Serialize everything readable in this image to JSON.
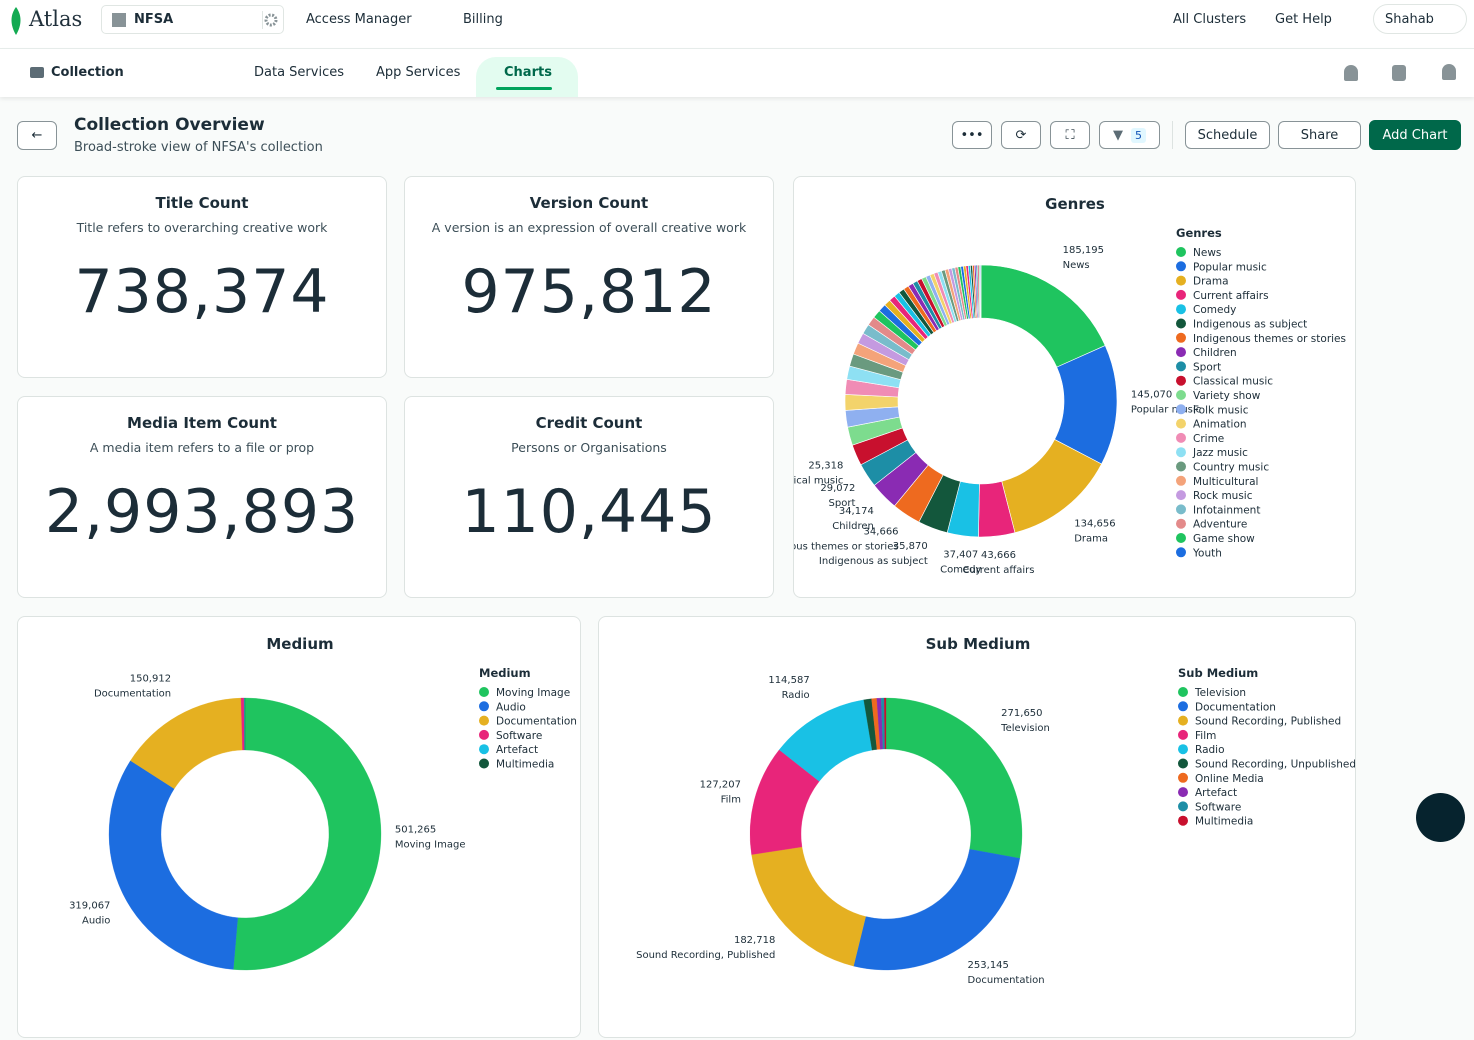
{
  "topbar": {
    "logo": "Atlas",
    "org": "NFSA",
    "nav": [
      "Access Manager",
      "Billing"
    ],
    "right": [
      "All Clusters",
      "Get Help",
      "Shahab"
    ]
  },
  "subbar": {
    "project": "Collection",
    "tabs": [
      "Data Services",
      "App Services",
      "Charts"
    ]
  },
  "header": {
    "title": "Collection Overview",
    "subtitle": "Broad-stroke view of NFSA's collection",
    "filter_count": 5,
    "buttons": [
      "Schedule",
      "Share",
      "Add Chart"
    ]
  },
  "kpis": [
    {
      "title": "Title Count",
      "subtitle": "Title refers to overarching creative work",
      "value": "738,374"
    },
    {
      "title": "Version Count",
      "subtitle": "A version is an expression of overall creative work",
      "value": "975,812"
    },
    {
      "title": "Media Item Count",
      "subtitle": "A media item refers to a file or prop",
      "value": "2,993,893"
    },
    {
      "title": "Credit Count",
      "subtitle": "Persons or Organisations",
      "value": "110,445"
    }
  ],
  "chart_data": [
    {
      "type": "pie",
      "title": "Genres",
      "legend_title": "Genres",
      "categories": [
        "News",
        "Popular music",
        "Drama",
        "Current affairs",
        "Comedy",
        "Indigenous as subject",
        "Indigenous themes or stories",
        "Children",
        "Sport",
        "Classical music",
        "Variety show",
        "Folk music",
        "Animation",
        "Crime",
        "Jazz music",
        "Country music",
        "Multicultural",
        "Rock music",
        "Infotainment",
        "Adventure",
        "Game show",
        "Youth",
        null,
        null,
        null,
        null,
        null,
        null,
        null,
        null,
        null,
        null,
        null,
        null,
        null,
        null,
        null,
        null,
        null,
        null,
        null,
        null,
        null,
        null,
        null,
        null,
        null,
        null,
        null,
        null,
        null,
        null
      ],
      "values": [
        185195,
        145070,
        134656,
        43666,
        37407,
        35870,
        34666,
        34174,
        29072,
        25318,
        22000,
        20000,
        19000,
        18000,
        16000,
        15000,
        14000,
        13000,
        12000,
        11000,
        10000,
        9500,
        8000,
        7500,
        7000,
        6800,
        6500,
        6200,
        6000,
        5800,
        5500,
        5200,
        5000,
        4800,
        4600,
        4400,
        4200,
        4000,
        3800,
        3600,
        3400,
        3200,
        3000,
        2800,
        2600,
        2400,
        2200,
        2000,
        1800,
        1600,
        1400,
        1200
      ],
      "value_labels": [
        "185,195",
        "145,070",
        "134,656",
        "43,666",
        "37,407",
        "35,870",
        "34,666",
        "34,174",
        "29,072",
        "25,318",
        null,
        null,
        null,
        null,
        null,
        null,
        null,
        null,
        null,
        null,
        null,
        null,
        null,
        null,
        null,
        null,
        null,
        null,
        null,
        null,
        null,
        null,
        null,
        null,
        null,
        null,
        null,
        null,
        null,
        null,
        null,
        null,
        null,
        null,
        null,
        null,
        null,
        null,
        null,
        null,
        null,
        null
      ],
      "palette": [
        "#1fc45f",
        "#1c6de0",
        "#e5b021",
        "#e8257a",
        "#19c1e5",
        "#13573c",
        "#ee6a1f",
        "#8a2bb3",
        "#1d8ea6",
        "#c8102e",
        "#7ddc8e",
        "#8fb0f0",
        "#f3d36b",
        "#f08cb5",
        "#8ee0f3",
        "#6a9a7f",
        "#f4a37a",
        "#c49ae0",
        "#79bccb",
        "#e38a8a"
      ]
    },
    {
      "type": "pie",
      "title": "Medium",
      "legend_title": "Medium",
      "categories": [
        "Moving Image",
        "Audio",
        "Documentation",
        "Software",
        "Artefact",
        "Multimedia"
      ],
      "values": [
        501265,
        319067,
        150912,
        3500,
        800,
        268
      ],
      "value_labels": [
        "501,265",
        "319,067",
        "150,912",
        null,
        null,
        null
      ],
      "palette": [
        "#1fc45f",
        "#1c6de0",
        "#e5b021",
        "#e8257a",
        "#19c1e5",
        "#13573c"
      ]
    },
    {
      "type": "pie",
      "title": "Sub Medium",
      "legend_title": "Sub Medium",
      "categories": [
        "Television",
        "Documentation",
        "Sound Recording, Published",
        "Film",
        "Radio",
        "Sound Recording, Unpublished",
        "Online Media",
        "Artefact",
        "Software",
        "Multimedia"
      ],
      "values": [
        271650,
        253145,
        182718,
        127207,
        114587,
        9000,
        6000,
        5000,
        3500,
        2000
      ],
      "value_labels": [
        "271,650",
        "253,145",
        "182,718",
        "127,207",
        "114,587",
        null,
        null,
        null,
        null,
        null
      ],
      "palette": [
        "#1fc45f",
        "#1c6de0",
        "#e5b021",
        "#e8257a",
        "#19c1e5",
        "#13573c",
        "#ee6a1f",
        "#8a2bb3",
        "#1d8ea6",
        "#c8102e"
      ]
    }
  ]
}
